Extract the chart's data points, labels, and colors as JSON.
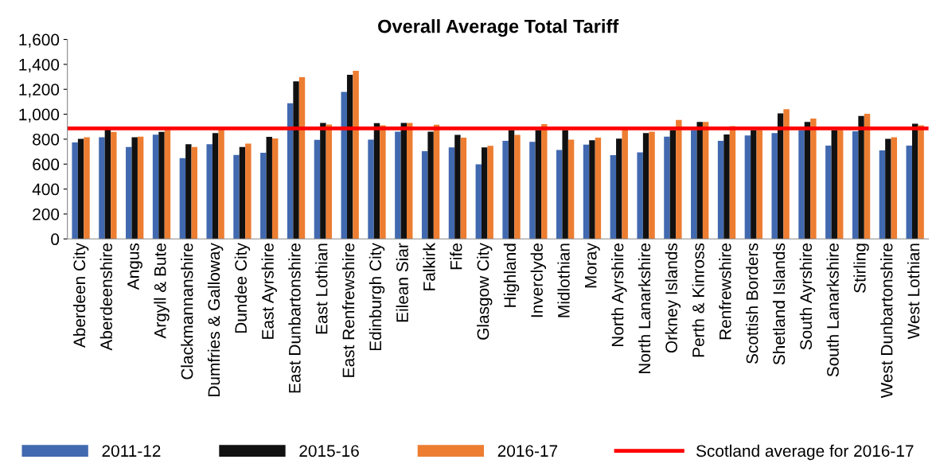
{
  "chart_data": {
    "type": "bar",
    "title": "Overall Average Total Tariff",
    "categories": [
      "Aberdeen City",
      "Aberdeenshire",
      "Angus",
      "Argyll & Bute",
      "Clackmannanshire",
      "Dumfries & Galloway",
      "Dundee City",
      "East Ayrshire",
      "East Dunbartonshire",
      "East Lothian",
      "East Renfrewshire",
      "Edinburgh City",
      "Eilean Siar",
      "Falkirk",
      "Fife",
      "Glasgow City",
      "Highland",
      "Inverclyde",
      "Midlothian",
      "Moray",
      "North Ayrshire",
      "North Lanarkshire",
      "Orkney Islands",
      "Perth & Kinross",
      "Renfrewshire",
      "Scottish Borders",
      "Shetland Islands",
      "South Ayrshire",
      "South Lanarkshire",
      "Stirling",
      "West Dunbartonshire",
      "West Lothian"
    ],
    "series": [
      {
        "name": "2011-12",
        "color": "#4169b0",
        "values": [
          774,
          815,
          738,
          836,
          648,
          759,
          674,
          691,
          1089,
          794,
          1179,
          796,
          860,
          704,
          734,
          599,
          787,
          779,
          714,
          757,
          672,
          695,
          821,
          873,
          787,
          830,
          849,
          873,
          749,
          864,
          710,
          749
        ]
      },
      {
        "name": "2015-16",
        "color": "#111111",
        "values": [
          802,
          880,
          815,
          858,
          759,
          849,
          738,
          819,
          1264,
          930,
          1316,
          928,
          930,
          860,
          834,
          734,
          873,
          873,
          873,
          791,
          804,
          849,
          873,
          939,
          838,
          873,
          1007,
          939,
          873,
          986,
          802,
          924
        ]
      },
      {
        "name": "2016-17",
        "color": "#ed7d31",
        "values": [
          815,
          858,
          821,
          873,
          738,
          880,
          764,
          806,
          1298,
          918,
          1348,
          911,
          930,
          916,
          813,
          747,
          834,
          920,
          796,
          813,
          880,
          860,
          954,
          939,
          905,
          873,
          1040,
          965,
          873,
          1003,
          815,
          911
        ]
      }
    ],
    "ylim": [
      0,
      1600
    ],
    "yticks": [
      0,
      200,
      400,
      600,
      800,
      {
        "value": 1000,
        "label": "1,000"
      },
      {
        "value": 1200,
        "label": "1,200"
      },
      {
        "value": 1400,
        "label": "1,400"
      },
      {
        "value": 1600,
        "label": "1,600"
      }
    ],
    "ref_lines": [
      {
        "axis": "y",
        "value": 886,
        "label": "Scotland average for 2016-17",
        "color": "#ff0000"
      }
    ],
    "legend": "bottom"
  }
}
